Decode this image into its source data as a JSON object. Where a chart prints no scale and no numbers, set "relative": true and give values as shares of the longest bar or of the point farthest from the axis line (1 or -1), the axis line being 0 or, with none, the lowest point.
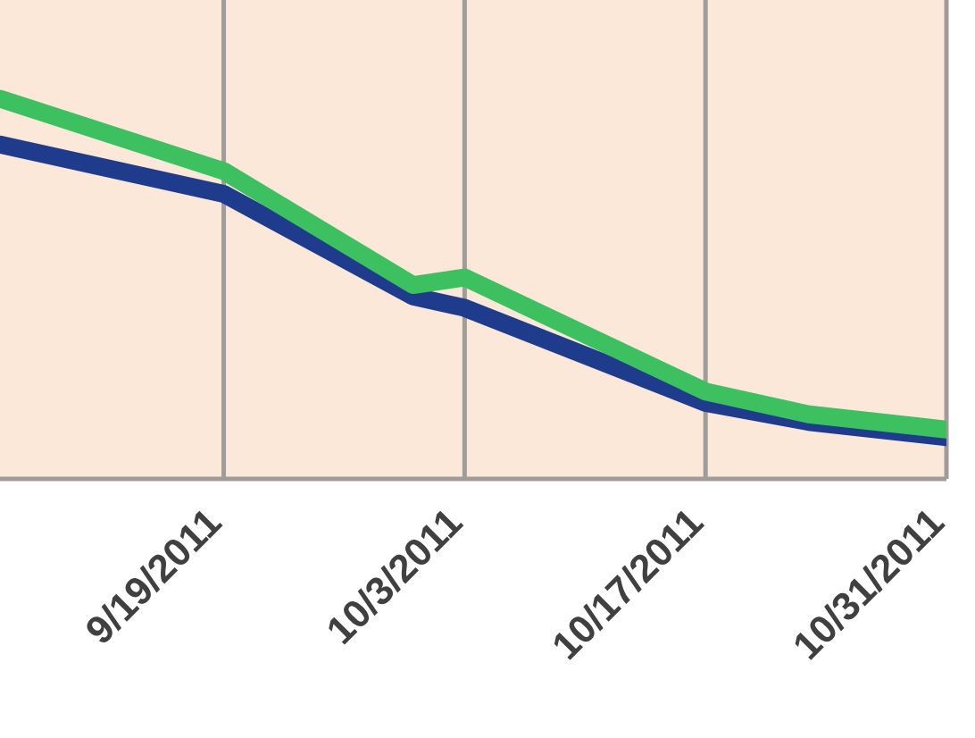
{
  "chart_data": {
    "type": "line",
    "relative": true,
    "grid": "x",
    "tick_labels": "x",
    "x": [
      "2011-09-06",
      "2011-09-19",
      "2011-09-30",
      "2011-10-03",
      "2011-10-17",
      "2011-10-23",
      "2011-10-31"
    ],
    "xlim": [
      "2011-09-06",
      "2011-10-31"
    ],
    "xticks": [
      {
        "value": "2011-09-19",
        "label": "9/19/2011"
      },
      {
        "value": "2011-10-03",
        "label": "10/3/2011"
      },
      {
        "value": "2011-10-17",
        "label": "10/17/2011"
      },
      {
        "value": "2011-10-31",
        "label": "10/31/2011"
      }
    ],
    "series": [
      {
        "color": "#1f3c8c",
        "values": [
          0.88,
          0.75,
          0.48,
          0.45,
          0.2,
          0.15,
          0.11
        ]
      },
      {
        "color": "#3cc060",
        "values": [
          1.0,
          0.81,
          0.51,
          0.53,
          0.23,
          0.17,
          0.13
        ]
      }
    ]
  }
}
